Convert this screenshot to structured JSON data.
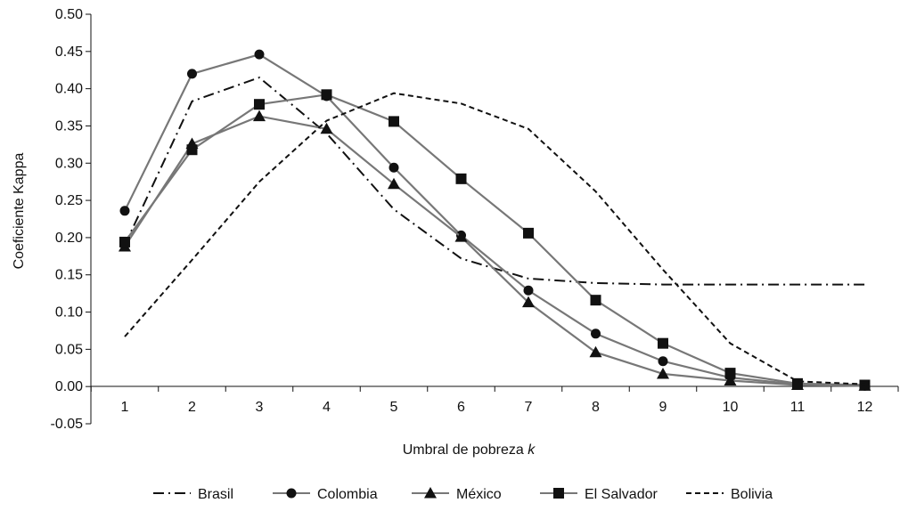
{
  "chart_data": {
    "type": "line",
    "xlabel": "Umbral de pobreza",
    "xlabel_var": "k",
    "ylabel": "Coeficiente Kappa",
    "ylim": [
      -0.05,
      0.5
    ],
    "yticks": [
      "-0.05",
      "0.00",
      "0.05",
      "0.10",
      "0.15",
      "0.20",
      "0.25",
      "0.30",
      "0.35",
      "0.40",
      "0.45",
      "0.50"
    ],
    "ytick_values": [
      -0.05,
      0.0,
      0.05,
      0.1,
      0.15,
      0.2,
      0.25,
      0.3,
      0.35,
      0.4,
      0.45,
      0.5
    ],
    "x": [
      1,
      2,
      3,
      4,
      5,
      6,
      7,
      8,
      9,
      10,
      11,
      12
    ],
    "xticks": [
      "1",
      "2",
      "3",
      "4",
      "5",
      "6",
      "7",
      "8",
      "9",
      "10",
      "11",
      "12"
    ],
    "grid": false,
    "legend_position": "bottom",
    "series": [
      {
        "name": "Brasil",
        "style": "dashdot",
        "marker": "none",
        "color": "#111111",
        "values": [
          0.19,
          0.383,
          0.415,
          0.34,
          0.238,
          0.172,
          0.145,
          0.139,
          0.137,
          0.137,
          0.137,
          0.137
        ]
      },
      {
        "name": "Colombia",
        "style": "solid",
        "marker": "circle",
        "color": "#777777",
        "values": [
          0.236,
          0.42,
          0.446,
          0.39,
          0.294,
          0.203,
          0.129,
          0.071,
          0.034,
          0.012,
          0.003,
          0.001
        ]
      },
      {
        "name": "México",
        "style": "solid",
        "marker": "triangle",
        "color": "#777777",
        "values": [
          0.188,
          0.326,
          0.363,
          0.346,
          0.272,
          0.201,
          0.113,
          0.046,
          0.017,
          0.008,
          0.002,
          0.001
        ]
      },
      {
        "name": "El Salvador",
        "style": "solid",
        "marker": "square",
        "color": "#777777",
        "values": [
          0.194,
          0.318,
          0.379,
          0.392,
          0.356,
          0.279,
          0.206,
          0.116,
          0.058,
          0.018,
          0.004,
          0.002
        ]
      },
      {
        "name": "Bolivia",
        "style": "dashed",
        "marker": "none",
        "color": "#111111",
        "values": [
          0.067,
          0.17,
          0.275,
          0.357,
          0.394,
          0.38,
          0.346,
          0.262,
          0.157,
          0.058,
          0.007,
          0.003
        ]
      }
    ]
  }
}
